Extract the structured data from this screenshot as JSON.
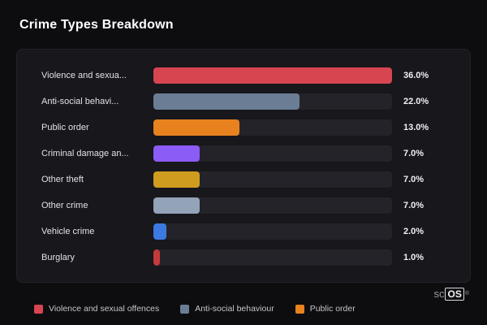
{
  "title": "Crime Types Breakdown",
  "chart_data": {
    "type": "bar",
    "orientation": "horizontal",
    "title": "Crime Types Breakdown",
    "categories": [
      "Violence and sexua...",
      "Anti-social behavi...",
      "Public order",
      "Criminal damage an...",
      "Other theft",
      "Other crime",
      "Vehicle crime",
      "Burglary"
    ],
    "values": [
      36.0,
      22.0,
      13.0,
      7.0,
      7.0,
      7.0,
      2.0,
      1.0
    ],
    "value_labels": [
      "36.0%",
      "22.0%",
      "13.0%",
      "7.0%",
      "7.0%",
      "7.0%",
      "2.0%",
      "1.0%"
    ],
    "colors": [
      "#d64550",
      "#6b7d94",
      "#e8821e",
      "#8b5cf6",
      "#d09c1f",
      "#93a3b8",
      "#3b7ae0",
      "#c43a3a"
    ],
    "scale_max": 36,
    "xlabel": "",
    "ylabel": "",
    "grid": false,
    "legend_position": "bottom",
    "legend": [
      {
        "label": "Violence and sexual offences",
        "color": "#d64550"
      },
      {
        "label": "Anti-social behaviour",
        "color": "#6b7d94"
      },
      {
        "label": "Public order",
        "color": "#e8821e"
      }
    ]
  },
  "watermark": {
    "prefix": "sc",
    "boxed": "OS",
    "reg": "®"
  }
}
